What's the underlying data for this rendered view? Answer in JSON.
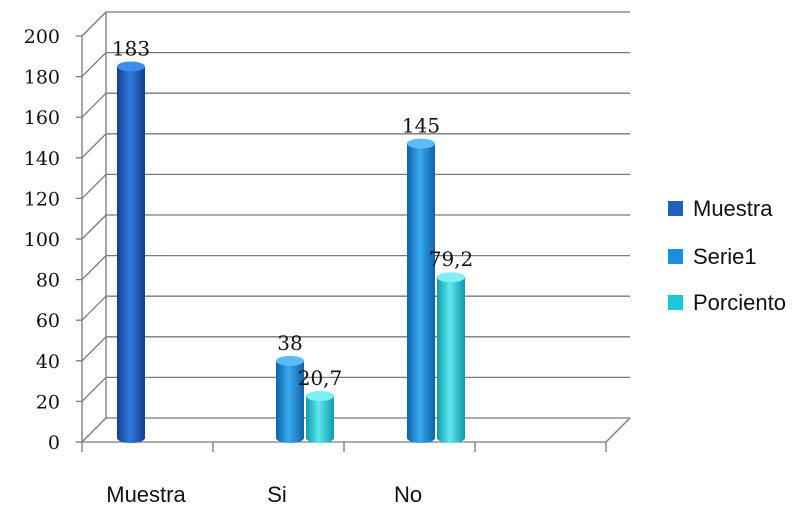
{
  "chart_data": {
    "type": "bar",
    "categories": [
      "Muestra",
      "Si",
      "No"
    ],
    "series": [
      {
        "name": "Muestra",
        "values": [
          183,
          null,
          null
        ],
        "color": "#1f5fc0"
      },
      {
        "name": "Serie1",
        "values": [
          null,
          38,
          145
        ],
        "color": "#1a8fe0"
      },
      {
        "name": "Porciento",
        "values": [
          null,
          20.7,
          79.2
        ],
        "color": "#1cc8d8"
      }
    ],
    "data_labels": [
      "183",
      "38",
      "20,7",
      "145",
      "79,2"
    ],
    "y_ticks": [
      "0",
      "20",
      "40",
      "60",
      "80",
      "100",
      "120",
      "140",
      "160",
      "180",
      "200"
    ],
    "ylim": [
      0,
      200
    ],
    "grid": true,
    "legend": "right",
    "style": "3d-cylinder"
  }
}
